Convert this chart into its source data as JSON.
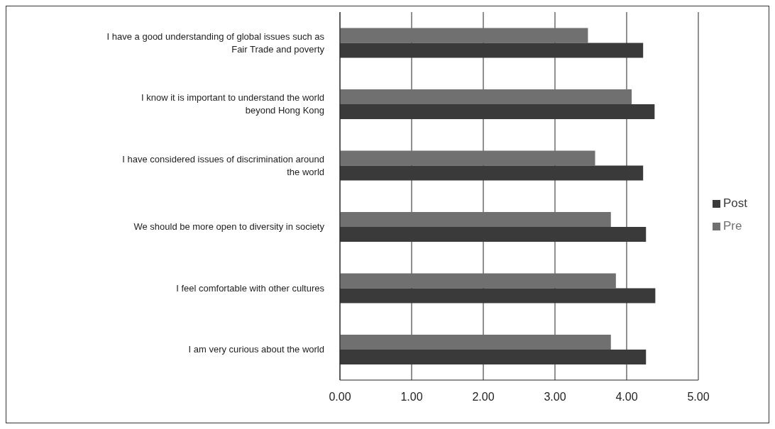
{
  "chart_data": {
    "type": "bar",
    "orientation": "horizontal",
    "categories": [
      "I have a good understanding of global issues such as Fair Trade and poverty",
      "I know it is important to understand the world beyond Hong Kong",
      "I have considered issues of discrimination around the world",
      "We should be more open to diversity in society",
      "I feel comfortable with other cultures",
      "I am very curious about the world"
    ],
    "series": [
      {
        "name": "Pre",
        "color": "#707070",
        "values": [
          3.46,
          4.07,
          3.56,
          3.78,
          3.85,
          3.78
        ]
      },
      {
        "name": "Post",
        "color": "#3a3a3a",
        "values": [
          4.23,
          4.39,
          4.23,
          4.27,
          4.4,
          4.27
        ]
      }
    ],
    "xlim": [
      0,
      5
    ],
    "xticks": [
      {
        "value": 0,
        "label": "0.00"
      },
      {
        "value": 1,
        "label": "1.00"
      },
      {
        "value": 2,
        "label": "2.00"
      },
      {
        "value": 3,
        "label": "3.00"
      },
      {
        "value": 4,
        "label": "4.00"
      },
      {
        "value": 5,
        "label": "5.00"
      }
    ],
    "grid": "x",
    "legend": "right"
  }
}
